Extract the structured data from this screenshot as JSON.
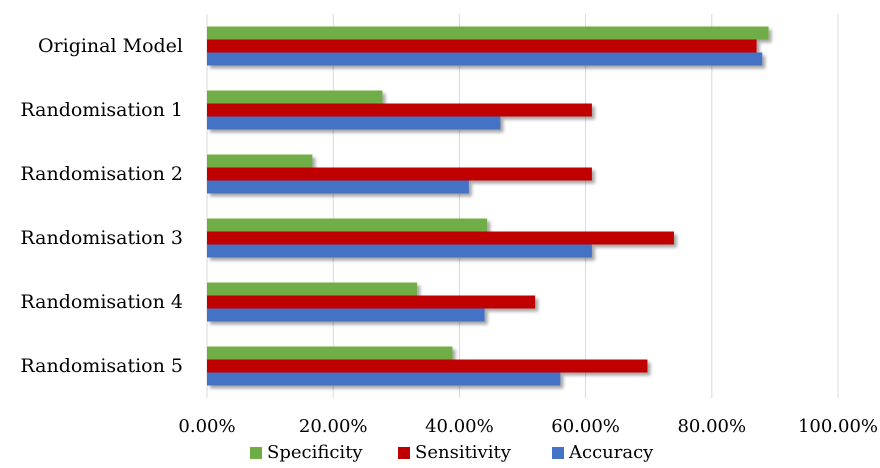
{
  "chart_data": {
    "type": "bar",
    "orientation": "horizontal",
    "title": "",
    "xlabel": "",
    "ylabel": "",
    "categories": [
      "Original Model",
      "Randomisation 1",
      "Randomisation 2",
      "Randomisation 3",
      "Randomisation 4",
      "Randomisation 5"
    ],
    "series": [
      {
        "name": "Specificity",
        "color": "#70ad47",
        "values": [
          89.0,
          27.8,
          16.7,
          44.4,
          33.3,
          38.9
        ]
      },
      {
        "name": "Sensitivity",
        "color": "#c00000",
        "values": [
          87.1,
          61.0,
          61.0,
          74.0,
          52.0,
          69.8
        ]
      },
      {
        "name": "Accuracy",
        "color": "#4472c4",
        "values": [
          88.0,
          46.5,
          41.5,
          61.0,
          44.0,
          56.0
        ]
      }
    ],
    "xlim": [
      0,
      100
    ],
    "x_ticks": [
      "0.00%",
      "20.00%",
      "40.00%",
      "60.00%",
      "80.00%",
      "100.00%"
    ],
    "grid": "vertical",
    "legend_position": "bottom"
  }
}
